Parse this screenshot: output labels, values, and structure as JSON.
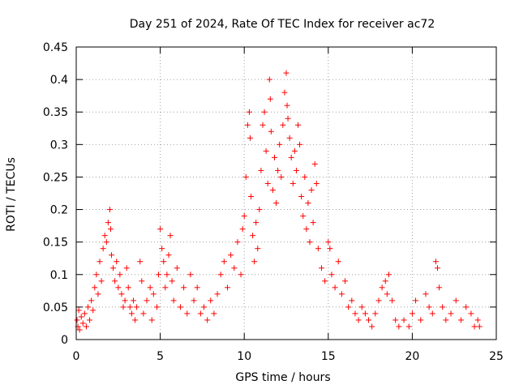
{
  "chart_data": {
    "type": "scatter",
    "title": "Day 251 of 2024, Rate Of TEC Index for receiver ac72",
    "xlabel": "GPS time / hours",
    "ylabel": "ROTI / TECUs",
    "xlim": [
      0,
      25
    ],
    "ylim": [
      0,
      0.45
    ],
    "xticks": [
      0,
      5,
      10,
      15,
      20,
      25
    ],
    "yticks": [
      0,
      0.05,
      0.1,
      0.15,
      0.2,
      0.25,
      0.3,
      0.35,
      0.4,
      0.45
    ],
    "xtick_labels": [
      "0",
      "5",
      "10",
      "15",
      "20",
      "25"
    ],
    "ytick_labels": [
      "0",
      "0.05",
      "0.1",
      "0.15",
      "0.2",
      "0.25",
      "0.3",
      "0.35",
      "0.4",
      "0.45"
    ],
    "grid": true,
    "marker": "+",
    "point_color": "#ff0000",
    "series": [
      {
        "points": [
          [
            0.05,
            0.03
          ],
          [
            0.1,
            0.02
          ],
          [
            0.15,
            0.045
          ],
          [
            0.2,
            0.015
          ],
          [
            0.3,
            0.035
          ],
          [
            0.4,
            0.025
          ],
          [
            0.5,
            0.04
          ],
          [
            0.6,
            0.02
          ],
          [
            0.7,
            0.05
          ],
          [
            0.8,
            0.03
          ],
          [
            0.9,
            0.06
          ],
          [
            1.0,
            0.045
          ],
          [
            1.1,
            0.08
          ],
          [
            1.2,
            0.1
          ],
          [
            1.3,
            0.07
          ],
          [
            1.4,
            0.12
          ],
          [
            1.5,
            0.09
          ],
          [
            1.6,
            0.14
          ],
          [
            1.7,
            0.16
          ],
          [
            1.8,
            0.15
          ],
          [
            1.9,
            0.18
          ],
          [
            2.0,
            0.2
          ],
          [
            2.05,
            0.17
          ],
          [
            2.1,
            0.13
          ],
          [
            2.2,
            0.11
          ],
          [
            2.3,
            0.09
          ],
          [
            2.4,
            0.12
          ],
          [
            2.5,
            0.08
          ],
          [
            2.6,
            0.1
          ],
          [
            2.7,
            0.07
          ],
          [
            2.8,
            0.05
          ],
          [
            2.9,
            0.06
          ],
          [
            3.0,
            0.11
          ],
          [
            3.1,
            0.08
          ],
          [
            3.2,
            0.05
          ],
          [
            3.3,
            0.04
          ],
          [
            3.4,
            0.06
          ],
          [
            3.5,
            0.03
          ],
          [
            3.6,
            0.05
          ],
          [
            3.8,
            0.12
          ],
          [
            3.9,
            0.09
          ],
          [
            4.0,
            0.04
          ],
          [
            4.2,
            0.06
          ],
          [
            4.4,
            0.08
          ],
          [
            4.5,
            0.03
          ],
          [
            4.6,
            0.07
          ],
          [
            4.8,
            0.05
          ],
          [
            4.9,
            0.1
          ],
          [
            5.0,
            0.17
          ],
          [
            5.1,
            0.14
          ],
          [
            5.2,
            0.12
          ],
          [
            5.3,
            0.08
          ],
          [
            5.4,
            0.1
          ],
          [
            5.5,
            0.13
          ],
          [
            5.6,
            0.16
          ],
          [
            5.7,
            0.09
          ],
          [
            5.8,
            0.06
          ],
          [
            6.0,
            0.11
          ],
          [
            6.2,
            0.05
          ],
          [
            6.4,
            0.08
          ],
          [
            6.6,
            0.04
          ],
          [
            6.8,
            0.1
          ],
          [
            7.0,
            0.06
          ],
          [
            7.2,
            0.08
          ],
          [
            7.4,
            0.04
          ],
          [
            7.6,
            0.05
          ],
          [
            7.8,
            0.03
          ],
          [
            8.0,
            0.06
          ],
          [
            8.2,
            0.04
          ],
          [
            8.4,
            0.07
          ],
          [
            8.6,
            0.1
          ],
          [
            8.8,
            0.12
          ],
          [
            9.0,
            0.08
          ],
          [
            9.2,
            0.13
          ],
          [
            9.4,
            0.11
          ],
          [
            9.6,
            0.15
          ],
          [
            9.8,
            0.1
          ],
          [
            9.9,
            0.17
          ],
          [
            10.0,
            0.19
          ],
          [
            10.1,
            0.25
          ],
          [
            10.2,
            0.33
          ],
          [
            10.3,
            0.35
          ],
          [
            10.35,
            0.31
          ],
          [
            10.4,
            0.22
          ],
          [
            10.5,
            0.16
          ],
          [
            10.6,
            0.12
          ],
          [
            10.7,
            0.18
          ],
          [
            10.8,
            0.14
          ],
          [
            10.9,
            0.2
          ],
          [
            11.0,
            0.26
          ],
          [
            11.1,
            0.33
          ],
          [
            11.2,
            0.35
          ],
          [
            11.3,
            0.29
          ],
          [
            11.4,
            0.24
          ],
          [
            11.5,
            0.4
          ],
          [
            11.55,
            0.37
          ],
          [
            11.6,
            0.32
          ],
          [
            11.7,
            0.23
          ],
          [
            11.8,
            0.28
          ],
          [
            11.9,
            0.21
          ],
          [
            12.0,
            0.26
          ],
          [
            12.1,
            0.3
          ],
          [
            12.2,
            0.25
          ],
          [
            12.3,
            0.33
          ],
          [
            12.4,
            0.38
          ],
          [
            12.5,
            0.41
          ],
          [
            12.55,
            0.36
          ],
          [
            12.6,
            0.34
          ],
          [
            12.7,
            0.31
          ],
          [
            12.8,
            0.28
          ],
          [
            12.9,
            0.24
          ],
          [
            13.0,
            0.29
          ],
          [
            13.1,
            0.26
          ],
          [
            13.2,
            0.33
          ],
          [
            13.3,
            0.3
          ],
          [
            13.4,
            0.22
          ],
          [
            13.5,
            0.19
          ],
          [
            13.6,
            0.25
          ],
          [
            13.7,
            0.17
          ],
          [
            13.8,
            0.21
          ],
          [
            13.9,
            0.15
          ],
          [
            14.0,
            0.23
          ],
          [
            14.1,
            0.18
          ],
          [
            14.2,
            0.27
          ],
          [
            14.3,
            0.24
          ],
          [
            14.4,
            0.14
          ],
          [
            14.6,
            0.11
          ],
          [
            14.8,
            0.09
          ],
          [
            15.0,
            0.15
          ],
          [
            15.1,
            0.14
          ],
          [
            15.2,
            0.1
          ],
          [
            15.4,
            0.08
          ],
          [
            15.6,
            0.12
          ],
          [
            15.8,
            0.07
          ],
          [
            16.0,
            0.09
          ],
          [
            16.2,
            0.05
          ],
          [
            16.4,
            0.06
          ],
          [
            16.6,
            0.04
          ],
          [
            16.8,
            0.03
          ],
          [
            17.0,
            0.05
          ],
          [
            17.2,
            0.04
          ],
          [
            17.4,
            0.03
          ],
          [
            17.6,
            0.02
          ],
          [
            17.8,
            0.04
          ],
          [
            18.0,
            0.06
          ],
          [
            18.2,
            0.08
          ],
          [
            18.4,
            0.09
          ],
          [
            18.5,
            0.07
          ],
          [
            18.6,
            0.1
          ],
          [
            18.8,
            0.06
          ],
          [
            19.0,
            0.03
          ],
          [
            19.2,
            0.02
          ],
          [
            19.5,
            0.03
          ],
          [
            19.8,
            0.02
          ],
          [
            20.0,
            0.04
          ],
          [
            20.2,
            0.06
          ],
          [
            20.5,
            0.03
          ],
          [
            20.8,
            0.07
          ],
          [
            21.0,
            0.05
          ],
          [
            21.2,
            0.04
          ],
          [
            21.4,
            0.12
          ],
          [
            21.5,
            0.11
          ],
          [
            21.6,
            0.08
          ],
          [
            21.8,
            0.05
          ],
          [
            22.0,
            0.03
          ],
          [
            22.3,
            0.04
          ],
          [
            22.6,
            0.06
          ],
          [
            22.9,
            0.03
          ],
          [
            23.2,
            0.05
          ],
          [
            23.5,
            0.04
          ],
          [
            23.7,
            0.02
          ],
          [
            23.9,
            0.03
          ],
          [
            24.0,
            0.02
          ]
        ]
      }
    ]
  }
}
